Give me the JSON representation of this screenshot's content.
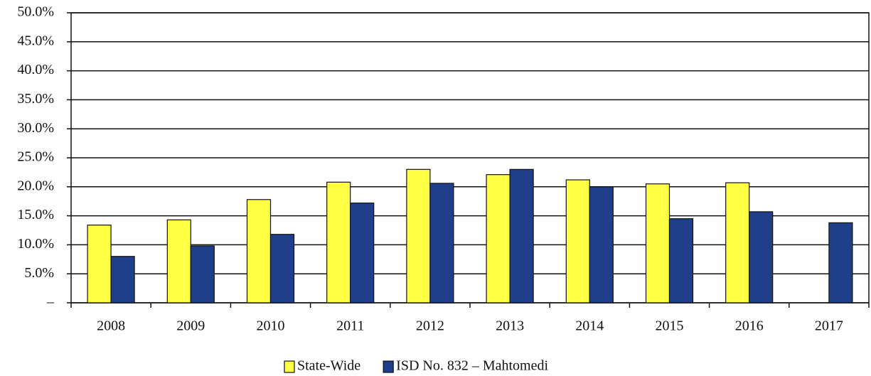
{
  "chart_data": {
    "type": "bar",
    "categories": [
      "2008",
      "2009",
      "2010",
      "2011",
      "2012",
      "2013",
      "2014",
      "2015",
      "2016",
      "2017"
    ],
    "series": [
      {
        "name": "State-Wide",
        "color": "#ffff44",
        "values": [
          13.4,
          14.3,
          17.8,
          20.8,
          23.0,
          22.1,
          21.2,
          20.5,
          20.7,
          null
        ]
      },
      {
        "name": "ISD No. 832 – Mahtomedi",
        "color": "#1f3f8a",
        "values": [
          8.0,
          9.8,
          11.8,
          17.2,
          20.6,
          23.0,
          20.0,
          14.5,
          15.7,
          13.8
        ]
      }
    ],
    "ylim": [
      0,
      50
    ],
    "yticks": [
      {
        "value": 0,
        "label": "–"
      },
      {
        "value": 5,
        "label": "5.0%"
      },
      {
        "value": 10,
        "label": "10.0%"
      },
      {
        "value": 15,
        "label": "15.0%"
      },
      {
        "value": 20,
        "label": "20.0%"
      },
      {
        "value": 25,
        "label": "25.0%"
      },
      {
        "value": 30,
        "label": "30.0%"
      },
      {
        "value": 35,
        "label": "35.0%"
      },
      {
        "value": 40,
        "label": "40.0%"
      },
      {
        "value": 45,
        "label": "45.0%"
      },
      {
        "value": 50,
        "label": "50.0%"
      }
    ],
    "grid": true,
    "legend": "bottom"
  }
}
